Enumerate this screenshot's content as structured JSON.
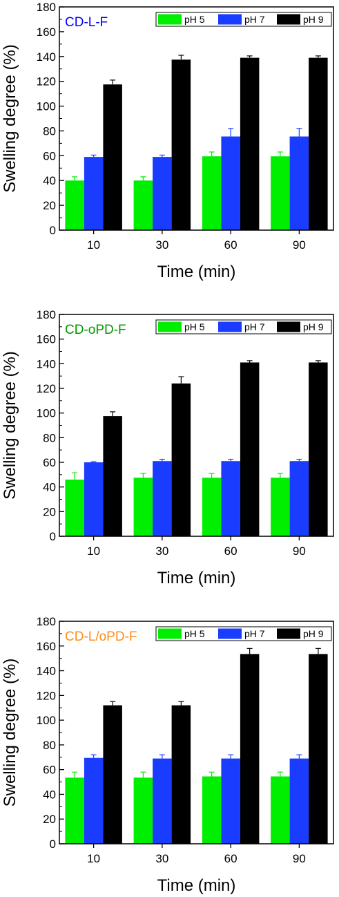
{
  "chart_data": [
    {
      "type": "bar",
      "title": "CD-L-F",
      "title_color": "#0000ff",
      "xlabel": "Time (min)",
      "ylabel": "Swelling degree (%)",
      "categories": [
        "10",
        "30",
        "60",
        "90"
      ],
      "ylim": [
        0,
        180
      ],
      "yticks": [
        "0",
        "20",
        "40",
        "60",
        "80",
        "100",
        "120",
        "140",
        "160",
        "180"
      ],
      "legend_position": "top-right",
      "series": [
        {
          "name": "pH 5",
          "color": "#00ee00",
          "values": [
            40,
            40,
            59.5,
            59.5
          ],
          "errors": [
            3,
            3,
            3.5,
            3.5
          ]
        },
        {
          "name": "pH 7",
          "color": "#1a3cff",
          "values": [
            59,
            59,
            75.5,
            75.5
          ],
          "errors": [
            1.5,
            1.5,
            6.5,
            6.5
          ]
        },
        {
          "name": "pH 9",
          "color": "#000000",
          "values": [
            117.5,
            137.5,
            139,
            139
          ],
          "errors": [
            3.5,
            3.5,
            1.5,
            1.5
          ]
        }
      ]
    },
    {
      "type": "bar",
      "title": "CD-oPD-F",
      "title_color": "#009900",
      "xlabel": "Time (min)",
      "ylabel": "Swelling degree (%)",
      "categories": [
        "10",
        "30",
        "60",
        "90"
      ],
      "ylim": [
        0,
        180
      ],
      "yticks": [
        "0",
        "20",
        "40",
        "60",
        "80",
        "100",
        "120",
        "140",
        "160",
        "180"
      ],
      "legend_position": "top-right",
      "series": [
        {
          "name": "pH 5",
          "color": "#00ee00",
          "values": [
            46,
            47.5,
            47.5,
            47.5
          ],
          "errors": [
            5.5,
            3.5,
            3.5,
            3.5
          ]
        },
        {
          "name": "pH 7",
          "color": "#1a3cff",
          "values": [
            60,
            61,
            61,
            61
          ],
          "errors": [
            0.5,
            1.5,
            1.5,
            1.5
          ]
        },
        {
          "name": "pH 9",
          "color": "#000000",
          "values": [
            97.5,
            124,
            141,
            141
          ],
          "errors": [
            3.5,
            5.5,
            1.5,
            1.5
          ]
        }
      ]
    },
    {
      "type": "bar",
      "title": "CD-L/oPD-F",
      "title_color": "#ff8c1a",
      "xlabel": "Time (min)",
      "ylabel": "Swelling degree (%)",
      "categories": [
        "10",
        "30",
        "60",
        "90"
      ],
      "ylim": [
        0,
        180
      ],
      "yticks": [
        "0",
        "20",
        "40",
        "60",
        "80",
        "100",
        "120",
        "140",
        "160",
        "180"
      ],
      "legend_position": "top-right",
      "series": [
        {
          "name": "pH 5",
          "color": "#00ee00",
          "values": [
            53.5,
            53.5,
            54.5,
            54.5
          ],
          "errors": [
            4.5,
            4.5,
            3.5,
            3.5
          ]
        },
        {
          "name": "pH 7",
          "color": "#1a3cff",
          "values": [
            69.5,
            69,
            69,
            69
          ],
          "errors": [
            2.5,
            3,
            3,
            3
          ]
        },
        {
          "name": "pH 9",
          "color": "#000000",
          "values": [
            112,
            112,
            153.5,
            153.5
          ],
          "errors": [
            3,
            3,
            4.5,
            4.5
          ]
        }
      ]
    }
  ]
}
